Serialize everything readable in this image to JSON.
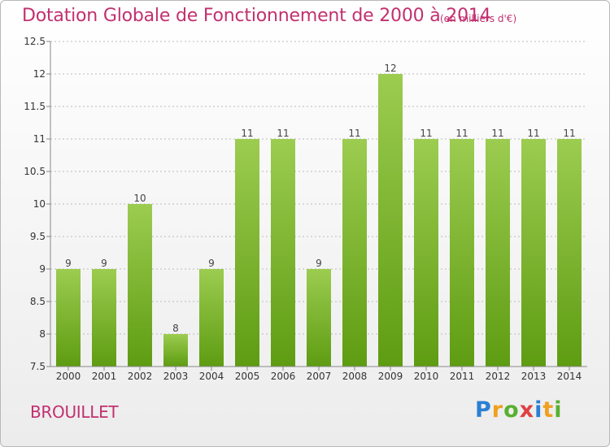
{
  "header": {
    "title": "Dotation Globale de Fonctionnement de 2000 à 2014",
    "subtitle": "(en milliers d'€)"
  },
  "footer": {
    "commune": "BROUILLET",
    "logo_letters": [
      "P",
      "r",
      "o",
      "x",
      "i",
      "t",
      "i"
    ],
    "logo_colors": [
      "#2a7fd4",
      "#f0a020",
      "#58b030",
      "#e04040",
      "#2a7fd4",
      "#f0a020",
      "#58b030"
    ]
  },
  "colors": {
    "bar_light": "#9ccc50",
    "bar_dark": "#5e9c12",
    "axis": "#888888",
    "grid": "#bbbbbb"
  },
  "chart_data": {
    "type": "bar",
    "title": "Dotation Globale de Fonctionnement de 2000 à 2014",
    "subtitle": "(en milliers d'€)",
    "xlabel": "",
    "ylabel": "",
    "categories": [
      "2000",
      "2001",
      "2002",
      "2003",
      "2004",
      "2005",
      "2006",
      "2007",
      "2008",
      "2009",
      "2010",
      "2011",
      "2012",
      "2013",
      "2014"
    ],
    "values": [
      9,
      9,
      10,
      8,
      9,
      11,
      11,
      9,
      11,
      12,
      11,
      11,
      11,
      11,
      11
    ],
    "ylim": [
      7.5,
      12.5
    ],
    "yticks": [
      7.5,
      8,
      8.5,
      9,
      9.5,
      10,
      10.5,
      11,
      11.5,
      12,
      12.5
    ],
    "grid": true,
    "legend": "none"
  }
}
